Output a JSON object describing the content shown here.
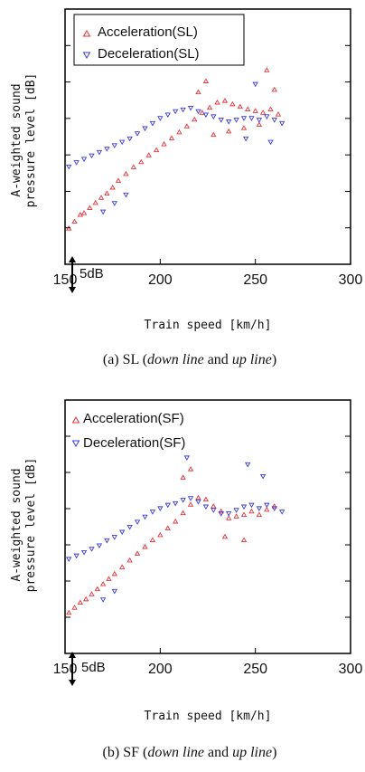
{
  "colors": {
    "accel": "#e5323a",
    "decel": "#3a3ad6"
  },
  "chart_data": [
    {
      "type": "scatter",
      "caption_prefix": "(a) SL (",
      "caption_italic1": "down line",
      "caption_mid": " and ",
      "caption_italic2": "up line",
      "caption_suffix": ")",
      "xlabel": "Train speed [km/h]",
      "ylabel": "A-weighted sound pressure level [dB]",
      "ylabel_line1": "A-weighted sound",
      "ylabel_line2": "pressure level [dB]",
      "xlim": [
        150,
        300
      ],
      "xticks": [
        "150",
        "200",
        "250",
        "300"
      ],
      "scale_bar": "5dB",
      "legend_placement": "top-left",
      "series": [
        {
          "name": "Acceleration(SL)",
          "marker": "triangle-up",
          "points": [
            [
              152,
              14.2
            ],
            [
              155,
              15.0
            ],
            [
              158,
              15.8
            ],
            [
              160,
              16.0
            ],
            [
              163,
              16.6
            ],
            [
              166,
              17.2
            ],
            [
              169,
              17.8
            ],
            [
              172,
              18.3
            ],
            [
              175,
              19.0
            ],
            [
              178,
              19.8
            ],
            [
              182,
              20.6
            ],
            [
              186,
              21.4
            ],
            [
              190,
              22.0
            ],
            [
              194,
              22.8
            ],
            [
              198,
              23.4
            ],
            [
              202,
              24.1
            ],
            [
              206,
              24.8
            ],
            [
              210,
              25.5
            ],
            [
              214,
              26.2
            ],
            [
              218,
              27.0
            ],
            [
              222,
              27.8
            ],
            [
              226,
              28.4
            ],
            [
              230,
              29.0
            ],
            [
              234,
              29.2
            ],
            [
              238,
              28.8
            ],
            [
              242,
              28.5
            ],
            [
              246,
              28.2
            ],
            [
              250,
              28.0
            ],
            [
              254,
              27.8
            ],
            [
              258,
              28.2
            ],
            [
              262,
              27.6
            ],
            [
              228,
              25.2
            ],
            [
              236,
              25.6
            ],
            [
              244,
              26.0
            ],
            [
              252,
              26.4
            ],
            [
              260,
              30.5
            ],
            [
              256,
              32.8
            ],
            [
              220,
              30.2
            ],
            [
              224,
              31.5
            ]
          ]
        },
        {
          "name": "Deceleration(SL)",
          "marker": "triangle-down",
          "points": [
            [
              152,
              21.5
            ],
            [
              156,
              22.0
            ],
            [
              160,
              22.4
            ],
            [
              164,
              22.8
            ],
            [
              168,
              23.2
            ],
            [
              172,
              23.6
            ],
            [
              176,
              24.0
            ],
            [
              180,
              24.4
            ],
            [
              184,
              24.8
            ],
            [
              188,
              25.4
            ],
            [
              192,
              26.0
            ],
            [
              196,
              26.6
            ],
            [
              200,
              27.2
            ],
            [
              204,
              27.6
            ],
            [
              208,
              28.0
            ],
            [
              212,
              28.2
            ],
            [
              216,
              28.4
            ],
            [
              220,
              28.0
            ],
            [
              224,
              27.6
            ],
            [
              228,
              27.4
            ],
            [
              232,
              27.0
            ],
            [
              236,
              26.8
            ],
            [
              240,
              27.0
            ],
            [
              244,
              27.2
            ],
            [
              248,
              27.2
            ],
            [
              252,
              27.0
            ],
            [
              256,
              27.4
            ],
            [
              260,
              27.0
            ],
            [
              264,
              26.6
            ],
            [
              170,
              16.2
            ],
            [
              176,
              17.2
            ],
            [
              182,
              18.2
            ],
            [
              250,
              31.2
            ],
            [
              245,
              24.8
            ],
            [
              258,
              24.4
            ]
          ]
        }
      ]
    },
    {
      "type": "scatter",
      "caption_prefix": "(b) SF (",
      "caption_italic1": "down line",
      "caption_mid": " and ",
      "caption_italic2": "up line",
      "caption_suffix": ")",
      "xlabel": "Train speed [km/h]",
      "ylabel": "A-weighted sound pressure level [dB]",
      "ylabel_line1": "A-weighted sound",
      "ylabel_line2": "pressure level [dB]",
      "xlim": [
        150,
        300
      ],
      "xticks": [
        "150",
        "200",
        "250",
        "300"
      ],
      "scale_bar": "5dB",
      "legend_placement": "top-left",
      "series": [
        {
          "name": "Acceleration(SF)",
          "marker": "triangle-up",
          "points": [
            [
              152,
              14.8
            ],
            [
              155,
              15.4
            ],
            [
              158,
              16.0
            ],
            [
              161,
              16.4
            ],
            [
              164,
              17.0
            ],
            [
              167,
              17.6
            ],
            [
              170,
              18.2
            ],
            [
              173,
              18.8
            ],
            [
              176,
              19.4
            ],
            [
              180,
              20.2
            ],
            [
              184,
              21.0
            ],
            [
              188,
              21.8
            ],
            [
              192,
              22.6
            ],
            [
              196,
              23.4
            ],
            [
              200,
              24.0
            ],
            [
              204,
              24.8
            ],
            [
              208,
              25.6
            ],
            [
              212,
              26.6
            ],
            [
              216,
              27.6
            ],
            [
              220,
              28.4
            ],
            [
              224,
              28.2
            ],
            [
              228,
              27.4
            ],
            [
              232,
              26.8
            ],
            [
              236,
              26.0
            ],
            [
              240,
              26.2
            ],
            [
              244,
              26.4
            ],
            [
              248,
              26.8
            ],
            [
              252,
              26.4
            ],
            [
              256,
              27.0
            ],
            [
              260,
              27.4
            ],
            [
              212,
              30.8
            ],
            [
              216,
              31.8
            ],
            [
              234,
              23.8
            ],
            [
              244,
              23.4
            ]
          ]
        },
        {
          "name": "Deceleration(SF)",
          "marker": "triangle-down",
          "points": [
            [
              152,
              21.2
            ],
            [
              156,
              21.6
            ],
            [
              160,
              22.0
            ],
            [
              164,
              22.4
            ],
            [
              168,
              22.8
            ],
            [
              172,
              23.4
            ],
            [
              176,
              23.8
            ],
            [
              180,
              24.4
            ],
            [
              184,
              25.0
            ],
            [
              188,
              25.6
            ],
            [
              192,
              26.2
            ],
            [
              196,
              26.8
            ],
            [
              200,
              27.2
            ],
            [
              204,
              27.6
            ],
            [
              208,
              27.8
            ],
            [
              212,
              28.2
            ],
            [
              216,
              28.4
            ],
            [
              220,
              28.0
            ],
            [
              224,
              27.4
            ],
            [
              228,
              27.0
            ],
            [
              232,
              26.6
            ],
            [
              236,
              26.6
            ],
            [
              240,
              27.0
            ],
            [
              244,
              27.4
            ],
            [
              248,
              27.6
            ],
            [
              252,
              27.2
            ],
            [
              256,
              27.6
            ],
            [
              260,
              27.2
            ],
            [
              264,
              26.8
            ],
            [
              214,
              33.2
            ],
            [
              170,
              16.4
            ],
            [
              176,
              17.4
            ],
            [
              246,
              32.4
            ],
            [
              254,
              31.0
            ]
          ]
        }
      ]
    }
  ]
}
